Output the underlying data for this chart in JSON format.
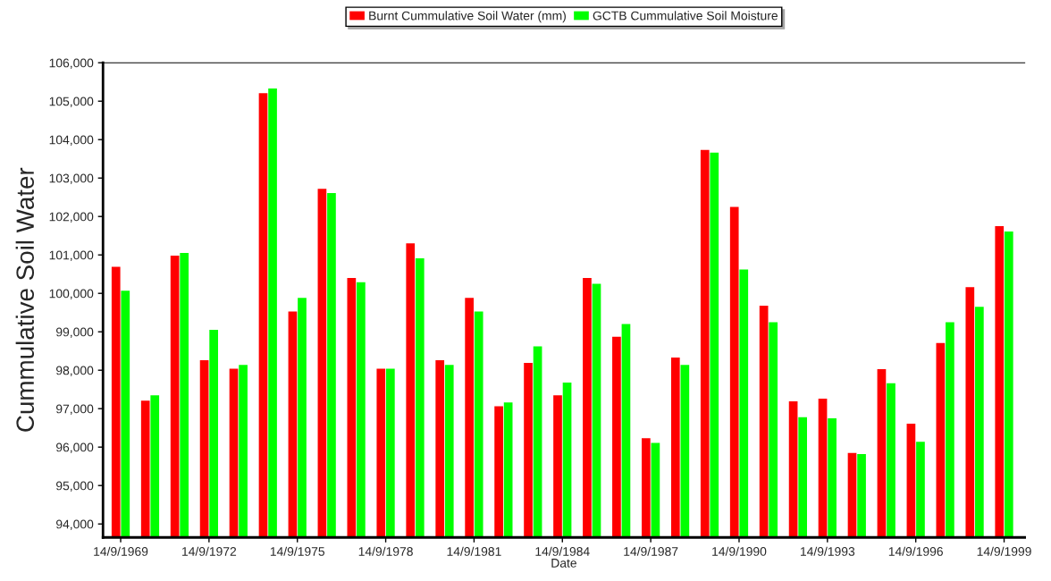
{
  "chart_data": {
    "type": "bar",
    "xlabel": "Date",
    "ylabel": "Cummulative Soil Water",
    "categories": [
      "14/9/1969",
      null,
      null,
      "14/9/1972",
      null,
      null,
      "14/9/1975",
      null,
      null,
      "14/9/1978",
      null,
      null,
      "14/9/1981",
      null,
      null,
      "14/9/1984",
      null,
      null,
      "14/9/1987",
      null,
      null,
      "14/9/1990",
      null,
      null,
      "14/9/1993",
      null,
      null,
      "14/9/1996",
      null,
      null,
      "14/9/1999"
    ],
    "series": [
      {
        "name": "Burnt Cummulative Soil Water (mm)",
        "color": "#ff0000",
        "values": [
          100690,
          97210,
          100980,
          98260,
          98040,
          105210,
          99530,
          102720,
          100400,
          98040,
          101300,
          98260,
          99880,
          97060,
          98190,
          97350,
          100400,
          98870,
          96230,
          98330,
          103730,
          102250,
          99680,
          97190,
          97260,
          95850,
          98030,
          96610,
          98710,
          100160,
          101750
        ]
      },
      {
        "name": "GCTB Cummulative Soil Moisture",
        "color": "#00ff00",
        "values": [
          100070,
          97350,
          101050,
          99050,
          98140,
          105330,
          99880,
          102610,
          100290,
          98040,
          100910,
          98140,
          99530,
          97160,
          98620,
          97680,
          100250,
          99200,
          96110,
          98140,
          103660,
          100620,
          99250,
          96780,
          96750,
          95820,
          97660,
          96140,
          99250,
          99650,
          101610
        ]
      }
    ],
    "ylim": [
      93650,
      106000
    ],
    "yticks": [
      {
        "value": 94000,
        "label": "94,000"
      },
      {
        "value": 95000,
        "label": "95,000"
      },
      {
        "value": 96000,
        "label": "96,000"
      },
      {
        "value": 97000,
        "label": "97,000"
      },
      {
        "value": 98000,
        "label": "98,000"
      },
      {
        "value": 99000,
        "label": "99,000"
      },
      {
        "value": 100000,
        "label": "100,000"
      },
      {
        "value": 101000,
        "label": "101,000"
      },
      {
        "value": 102000,
        "label": "102,000"
      },
      {
        "value": 103000,
        "label": "103,000"
      },
      {
        "value": 104000,
        "label": "104,000"
      },
      {
        "value": 105000,
        "label": "105,000"
      },
      {
        "value": 106000,
        "label": "106,000"
      }
    ],
    "grid": false,
    "legend": "top"
  }
}
